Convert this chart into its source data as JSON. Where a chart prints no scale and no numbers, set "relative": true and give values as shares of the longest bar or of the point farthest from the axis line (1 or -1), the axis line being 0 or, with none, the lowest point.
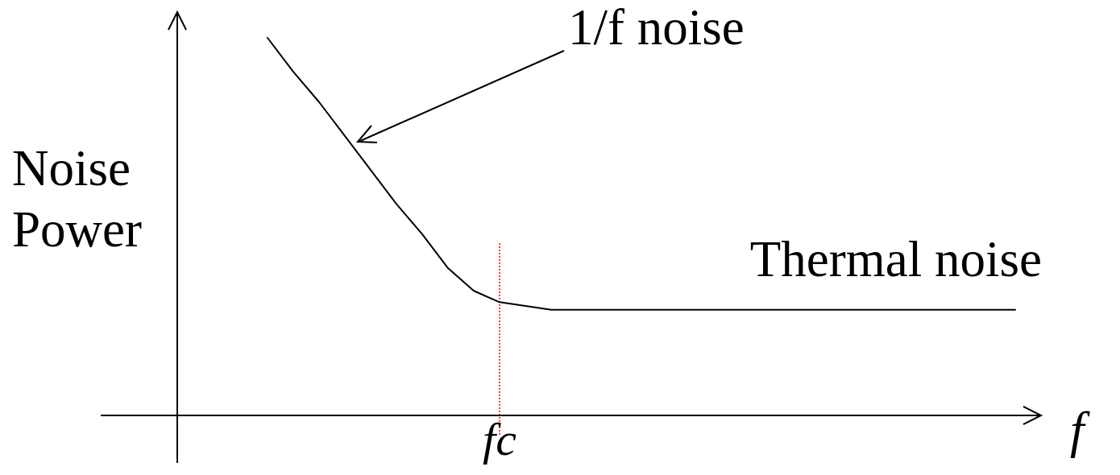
{
  "chart_data": {
    "type": "line",
    "xlabel": "f",
    "ylabel": "Noise Power",
    "categories": [
      null,
      null,
      null,
      null,
      null,
      null,
      null,
      null,
      null,
      null,
      null,
      null,
      null,
      null,
      null,
      null,
      null,
      null,
      null,
      null,
      null,
      null,
      null,
      null,
      null,
      null,
      null,
      null,
      null,
      null
    ],
    "series": [
      {
        "color": "#000000",
        "values": [
          1.0,
          0.91,
          0.83,
          0.74,
          0.65,
          0.56,
          0.48,
          0.39,
          0.33,
          0.3,
          0.29,
          0.28,
          0.28,
          0.28,
          0.28,
          0.28,
          0.28,
          0.28,
          0.28,
          0.28,
          0.28,
          0.28,
          0.28,
          0.28,
          0.28,
          0.28,
          0.28,
          0.28,
          0.28,
          0.28
        ]
      }
    ],
    "relative": true,
    "ref_lines": [
      {
        "axis": "x",
        "label": "fc",
        "color": "#ff0000",
        "line_style": "dotted"
      }
    ],
    "annotations": [
      "1/f noise",
      "Thermal noise"
    ]
  }
}
